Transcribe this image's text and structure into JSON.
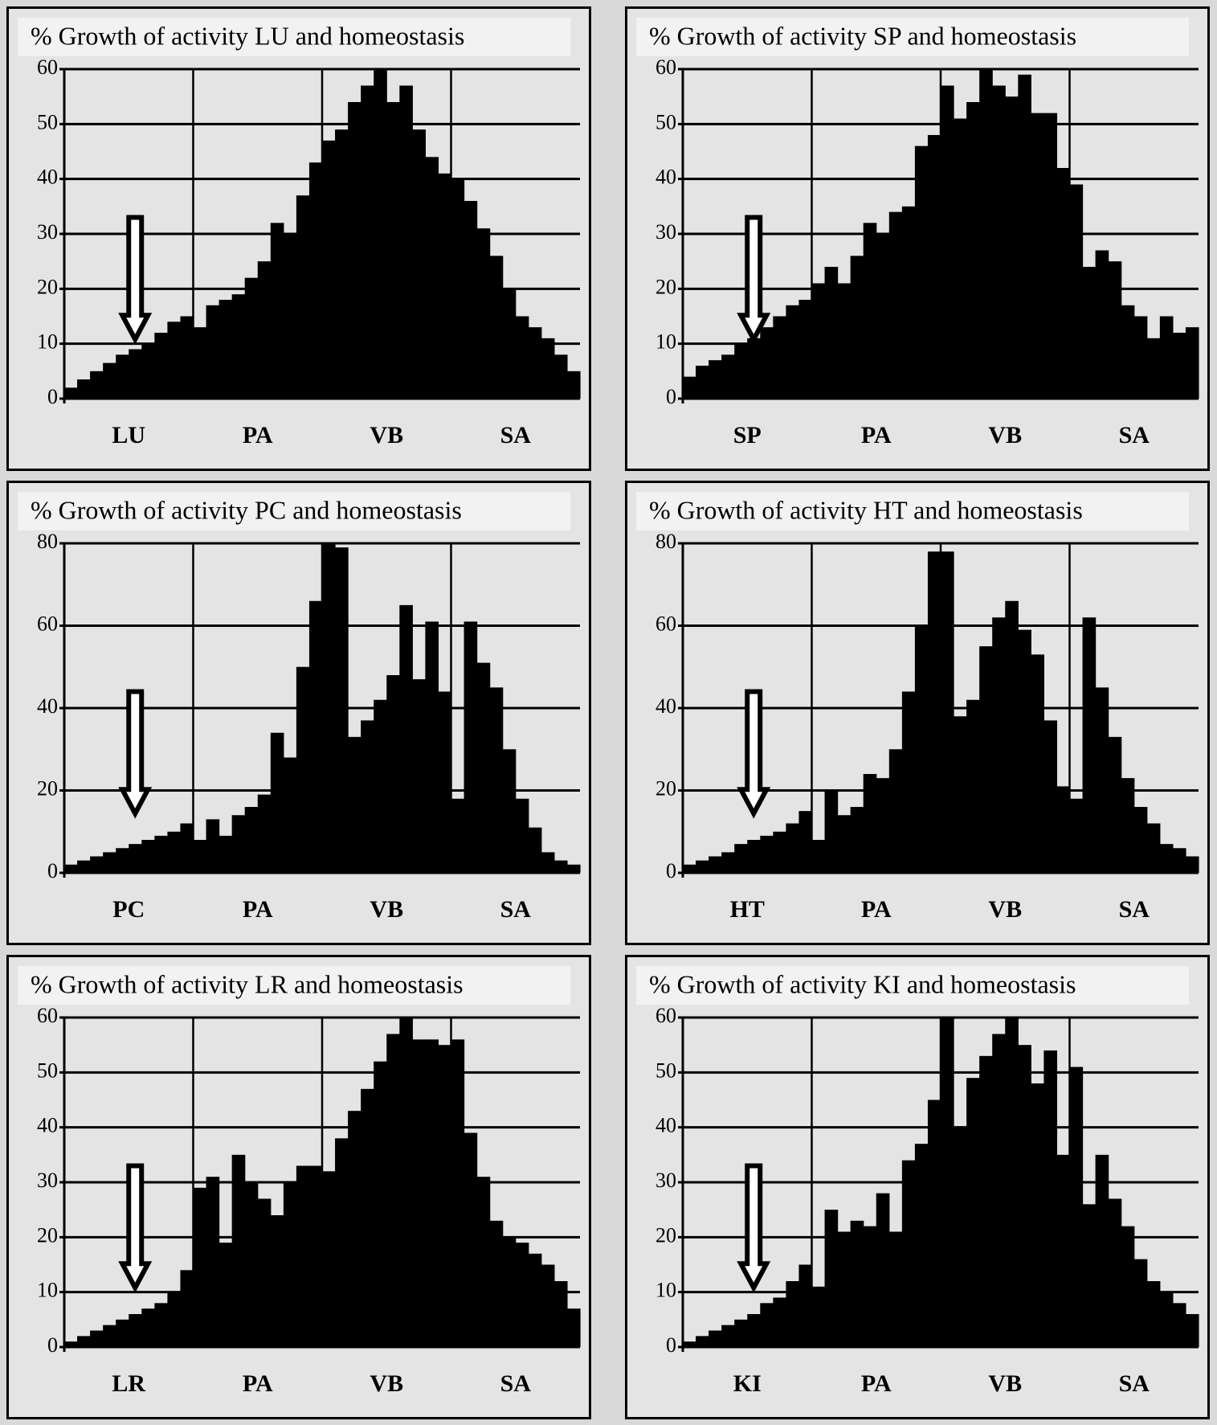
{
  "chart_data": [
    {
      "type": "bar",
      "title": "% Growth of activity LU and homeostasis",
      "color": "#000000",
      "grid": true,
      "categories": [
        null,
        null,
        null,
        null,
        "LU",
        null,
        null,
        null,
        null,
        null,
        null,
        null,
        null,
        null,
        "PA",
        null,
        null,
        null,
        null,
        null,
        null,
        null,
        null,
        null,
        "VB",
        null,
        null,
        null,
        null,
        null,
        null,
        null,
        null,
        null,
        "SA",
        null,
        null,
        null,
        null,
        null
      ],
      "values": [
        2,
        3.5,
        5,
        6.5,
        8,
        9,
        10,
        12,
        14,
        15,
        13,
        17,
        18,
        19,
        22,
        25,
        32,
        30,
        37,
        43,
        47,
        49,
        54,
        57,
        60,
        54,
        57,
        49,
        44,
        41,
        40,
        36,
        31,
        26,
        20,
        15,
        13,
        11,
        8,
        5
      ],
      "ylim": [
        0,
        60
      ],
      "yticks": [
        0,
        10,
        20,
        30,
        40,
        50,
        60
      ]
    },
    {
      "type": "bar",
      "title": "% Growth of activity SP and homeostasis",
      "color": "#000000",
      "grid": true,
      "categories": [
        null,
        null,
        null,
        null,
        "SP",
        null,
        null,
        null,
        null,
        null,
        null,
        null,
        null,
        null,
        "PA",
        null,
        null,
        null,
        null,
        null,
        null,
        null,
        null,
        null,
        "VB",
        null,
        null,
        null,
        null,
        null,
        null,
        null,
        null,
        null,
        "SA",
        null,
        null,
        null,
        null,
        null
      ],
      "values": [
        4,
        6,
        7,
        8,
        10,
        11,
        13,
        15,
        17,
        18,
        21,
        24,
        21,
        26,
        32,
        30,
        34,
        35,
        46,
        48,
        57,
        51,
        54,
        60,
        57,
        55,
        59,
        52,
        52,
        42,
        39,
        24,
        27,
        25,
        17,
        15,
        11,
        15,
        12,
        13
      ],
      "ylim": [
        0,
        60
      ],
      "yticks": [
        0,
        10,
        20,
        30,
        40,
        50,
        60
      ]
    },
    {
      "type": "bar",
      "title": "% Growth of activity PC and homeostasis",
      "color": "#000000",
      "grid": true,
      "categories": [
        null,
        null,
        null,
        null,
        "PC",
        null,
        null,
        null,
        null,
        null,
        null,
        null,
        null,
        null,
        "PA",
        null,
        null,
        null,
        null,
        null,
        null,
        null,
        null,
        null,
        "VB",
        null,
        null,
        null,
        null,
        null,
        null,
        null,
        null,
        null,
        "SA",
        null,
        null,
        null,
        null,
        null
      ],
      "values": [
        2,
        3,
        4,
        5,
        6,
        7,
        8,
        9,
        10,
        12,
        8,
        13,
        9,
        14,
        16,
        19,
        34,
        28,
        50,
        66,
        80,
        79,
        33,
        37,
        42,
        48,
        65,
        47,
        61,
        44,
        18,
        61,
        51,
        45,
        30,
        18,
        11,
        5,
        3,
        2
      ],
      "ylim": [
        0,
        80
      ],
      "yticks": [
        0,
        20,
        40,
        60,
        80
      ]
    },
    {
      "type": "bar",
      "title": "% Growth of activity HT and homeostasis",
      "color": "#000000",
      "grid": true,
      "categories": [
        null,
        null,
        null,
        null,
        "HT",
        null,
        null,
        null,
        null,
        null,
        null,
        null,
        null,
        null,
        "PA",
        null,
        null,
        null,
        null,
        null,
        null,
        null,
        null,
        null,
        "VB",
        null,
        null,
        null,
        null,
        null,
        null,
        null,
        null,
        null,
        "SA",
        null,
        null,
        null,
        null,
        null
      ],
      "values": [
        2,
        3,
        4,
        5,
        7,
        8,
        9,
        10,
        12,
        15,
        8,
        20,
        14,
        16,
        24,
        23,
        30,
        44,
        60,
        78,
        78,
        38,
        42,
        55,
        62,
        66,
        59,
        53,
        37,
        21,
        18,
        62,
        45,
        33,
        23,
        16,
        12,
        7,
        6,
        4
      ],
      "ylim": [
        0,
        80
      ],
      "yticks": [
        0,
        20,
        40,
        60,
        80
      ]
    },
    {
      "type": "bar",
      "title": "% Growth of activity LR and homeostasis",
      "color": "#000000",
      "grid": true,
      "categories": [
        null,
        null,
        null,
        null,
        "LR",
        null,
        null,
        null,
        null,
        null,
        null,
        null,
        null,
        null,
        "PA",
        null,
        null,
        null,
        null,
        null,
        null,
        null,
        null,
        null,
        "VB",
        null,
        null,
        null,
        null,
        null,
        null,
        null,
        null,
        null,
        "SA",
        null,
        null,
        null,
        null,
        null
      ],
      "values": [
        1,
        2,
        3,
        4,
        5,
        6,
        7,
        8,
        10,
        14,
        29,
        31,
        19,
        35,
        30,
        27,
        24,
        30,
        33,
        33,
        32,
        38,
        43,
        47,
        52,
        57,
        60,
        56,
        56,
        55,
        56,
        39,
        31,
        23,
        20,
        19,
        17,
        15,
        12,
        7
      ],
      "ylim": [
        0,
        60
      ],
      "yticks": [
        0,
        10,
        20,
        30,
        40,
        50,
        60
      ]
    },
    {
      "type": "bar",
      "title": "% Growth of activity KI and homeostasis",
      "color": "#000000",
      "grid": true,
      "categories": [
        null,
        null,
        null,
        null,
        "KI",
        null,
        null,
        null,
        null,
        null,
        null,
        null,
        null,
        null,
        "PA",
        null,
        null,
        null,
        null,
        null,
        null,
        null,
        null,
        null,
        "VB",
        null,
        null,
        null,
        null,
        null,
        null,
        null,
        null,
        null,
        "SA",
        null,
        null,
        null,
        null,
        null
      ],
      "values": [
        1,
        2,
        3,
        4,
        5,
        6,
        8,
        9,
        12,
        15,
        11,
        25,
        21,
        23,
        22,
        28,
        21,
        34,
        37,
        45,
        60,
        40,
        49,
        53,
        57,
        60,
        55,
        48,
        54,
        35,
        51,
        26,
        35,
        27,
        22,
        16,
        12,
        10,
        8,
        6
      ],
      "ylim": [
        0,
        60
      ],
      "yticks": [
        0,
        10,
        20,
        30,
        40,
        50,
        60
      ]
    }
  ]
}
